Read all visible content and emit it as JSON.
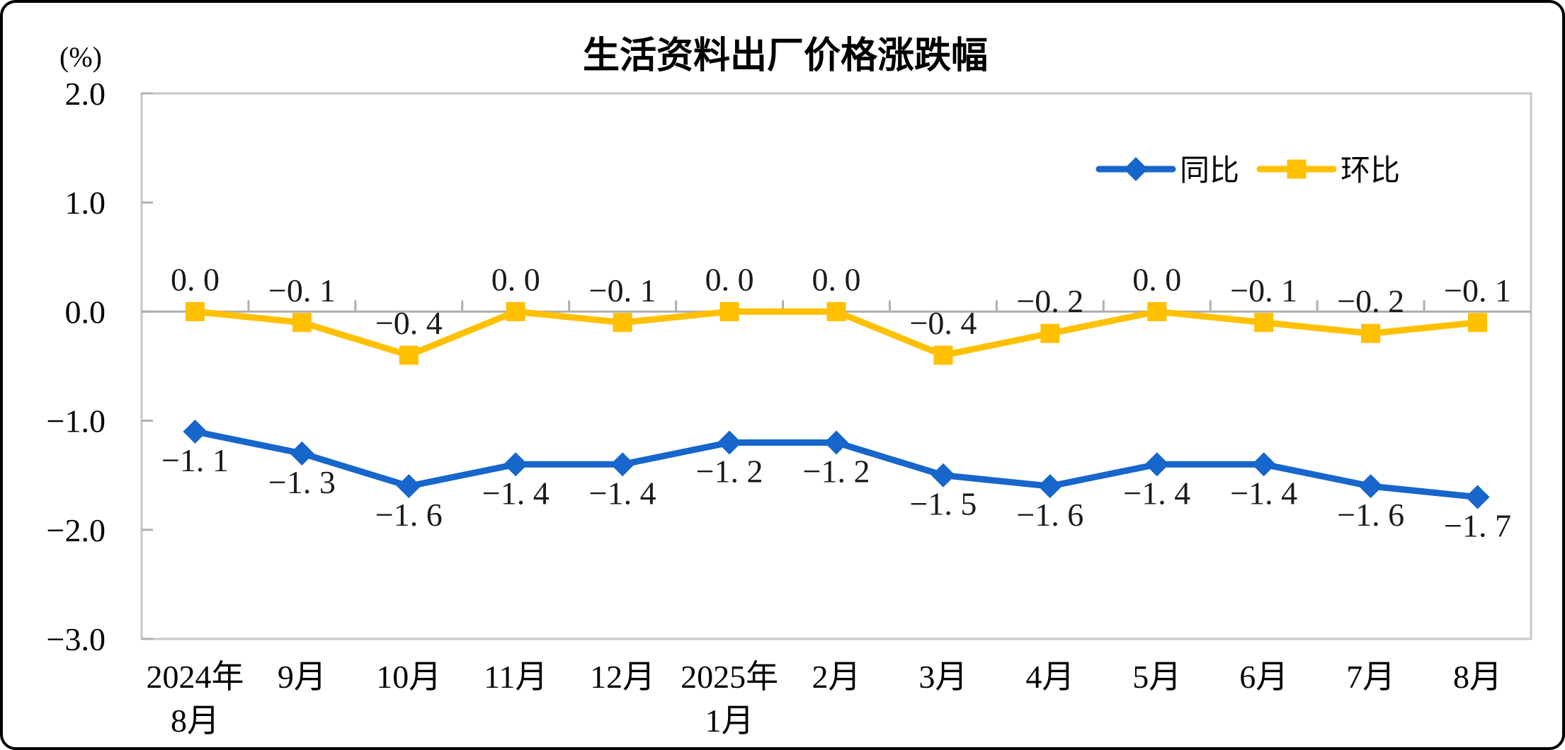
{
  "chart_data": {
    "type": "line",
    "title": "生活资料出厂价格涨跌幅",
    "unit_label": "(%)",
    "categories": [
      "2024年\n8月",
      "9月",
      "10月",
      "11月",
      "12月",
      "2025年\n1月",
      "2月",
      "3月",
      "4月",
      "5月",
      "6月",
      "7月",
      "8月"
    ],
    "series": [
      {
        "name": "同比",
        "color": "#1666CB",
        "marker": "diamond",
        "label_position": "below",
        "values": [
          -1.1,
          -1.3,
          -1.6,
          -1.4,
          -1.4,
          -1.2,
          -1.2,
          -1.5,
          -1.6,
          -1.4,
          -1.4,
          -1.6,
          -1.7
        ],
        "labels": [
          "−1. 1",
          "−1. 3",
          "−1. 6",
          "−1. 4",
          "−1. 4",
          "−1. 2",
          "−1. 2",
          "−1. 5",
          "−1. 6",
          "−1. 4",
          "−1. 4",
          "−1. 6",
          "−1. 7"
        ]
      },
      {
        "name": "环比",
        "color": "#FFC000",
        "marker": "square",
        "label_position": "above",
        "values": [
          0.0,
          -0.1,
          -0.4,
          0.0,
          -0.1,
          0.0,
          0.0,
          -0.4,
          -0.2,
          0.0,
          -0.1,
          -0.2,
          -0.1
        ],
        "labels": [
          "0. 0",
          "−0. 1",
          "−0. 4",
          "0. 0",
          "−0. 1",
          "0. 0",
          "0. 0",
          "−0. 4",
          "−0. 2",
          "0. 0",
          "−0. 1",
          "−0. 2",
          "−0. 1"
        ]
      }
    ],
    "y_axis": {
      "min": -3.0,
      "max": 2.0,
      "step": 1.0,
      "tick_labels": [
        "2.0",
        "1.0",
        "0.0",
        "−1.0",
        "−2.0",
        "−3.0"
      ]
    },
    "legend_position": "top-right",
    "grid": false,
    "colors": {
      "plot_border": "#C6C6C6",
      "zero_line": "#AFAFAF",
      "tick": "#AFAFAF",
      "text": "#000000"
    }
  }
}
